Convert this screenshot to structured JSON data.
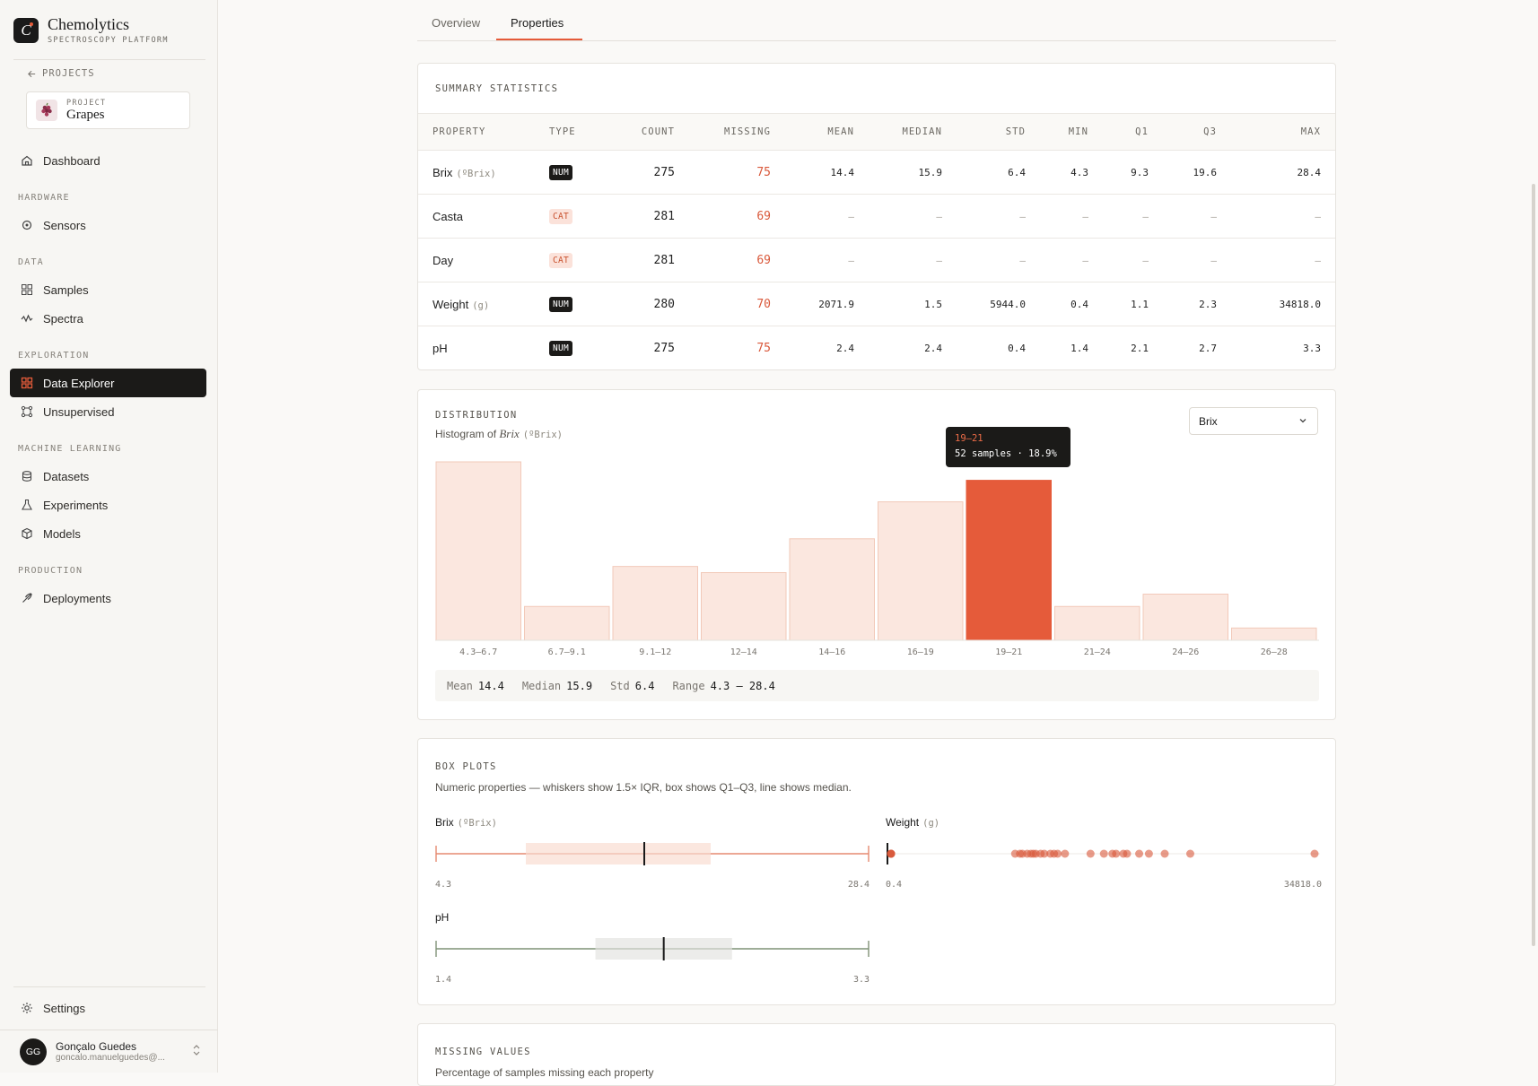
{
  "brand": {
    "name": "Chemolytics",
    "subtitle": "SPECTROSCOPY PLATFORM",
    "logo_letter": "C"
  },
  "sidebar": {
    "back_label": "PROJECTS",
    "project": {
      "kicker": "PROJECT",
      "name": "Grapes"
    },
    "dashboard": "Dashboard",
    "sections": {
      "hardware": "HARDWARE",
      "data": "DATA",
      "exploration": "EXPLORATION",
      "ml": "MACHINE LEARNING",
      "production": "PRODUCTION"
    },
    "items": {
      "sensors": "Sensors",
      "samples": "Samples",
      "spectra": "Spectra",
      "data_explorer": "Data Explorer",
      "unsupervised": "Unsupervised",
      "datasets": "Datasets",
      "experiments": "Experiments",
      "models": "Models",
      "deployments": "Deployments",
      "settings": "Settings"
    },
    "user": {
      "initials": "GG",
      "name": "Gonçalo Guedes",
      "email": "goncalo.manuelguedes@..."
    }
  },
  "tabs": {
    "overview": "Overview",
    "properties": "Properties",
    "active": "Properties"
  },
  "summary": {
    "title": "SUMMARY STATISTICS",
    "headers": [
      "PROPERTY",
      "TYPE",
      "COUNT",
      "MISSING",
      "MEAN",
      "MEDIAN",
      "STD",
      "MIN",
      "Q1",
      "Q3",
      "MAX"
    ],
    "rows": [
      {
        "name": "Brix",
        "unit": "(ºBrix)",
        "type": "NUM",
        "count": "275",
        "missing": "75",
        "mean": "14.4",
        "median": "15.9",
        "std": "6.4",
        "min": "4.3",
        "q1": "9.3",
        "q3": "19.6",
        "max": "28.4"
      },
      {
        "name": "Casta",
        "unit": "",
        "type": "CAT",
        "count": "281",
        "missing": "69",
        "mean": "–",
        "median": "–",
        "std": "–",
        "min": "–",
        "q1": "–",
        "q3": "–",
        "max": "–"
      },
      {
        "name": "Day",
        "unit": "",
        "type": "CAT",
        "count": "281",
        "missing": "69",
        "mean": "–",
        "median": "–",
        "std": "–",
        "min": "–",
        "q1": "–",
        "q3": "–",
        "max": "–"
      },
      {
        "name": "Weight",
        "unit": "(g)",
        "type": "NUM",
        "count": "280",
        "missing": "70",
        "mean": "2071.9",
        "median": "1.5",
        "std": "5944.0",
        "min": "0.4",
        "q1": "1.1",
        "q3": "2.3",
        "max": "34818.0"
      },
      {
        "name": "pH",
        "unit": "",
        "type": "NUM",
        "count": "275",
        "missing": "75",
        "mean": "2.4",
        "median": "2.4",
        "std": "0.4",
        "min": "1.4",
        "q1": "2.1",
        "q3": "2.7",
        "max": "3.3"
      }
    ]
  },
  "distribution": {
    "title": "DISTRIBUTION",
    "subtitle_prefix": "Histogram of ",
    "subtitle_var": "Brix",
    "subtitle_unit": "(ºBrix)",
    "select_value": "Brix",
    "tooltip": {
      "range": "19–21",
      "text": "52 samples · 18.9%"
    },
    "stats": {
      "mean_label": "Mean",
      "mean": "14.4",
      "median_label": "Median",
      "median": "15.9",
      "std_label": "Std",
      "std": "6.4",
      "range_label": "Range",
      "range": "4.3 – 28.4"
    },
    "colors": {
      "bar": "#fbe7df",
      "bar_border": "#f2c9b9",
      "highlight": "#e55b3a"
    }
  },
  "chart_data": {
    "type": "bar",
    "categories": [
      "4.3–6.7",
      "6.7–9.1",
      "9.1–12",
      "12–14",
      "14–16",
      "16–19",
      "19–21",
      "21–24",
      "24–26",
      "26–28"
    ],
    "values": [
      58,
      11,
      24,
      22,
      33,
      45,
      52,
      11,
      15,
      4
    ],
    "highlighted": "19–21",
    "ylim": [
      0,
      58
    ]
  },
  "boxplots": {
    "title": "BOX PLOTS",
    "subtitle": "Numeric properties — whiskers show 1.5× IQR, box shows Q1–Q3, line shows median.",
    "brix": {
      "name": "Brix",
      "unit": "(ºBrix)",
      "min": 4.3,
      "q1": 9.3,
      "median": 15.9,
      "q3": 19.6,
      "max": 28.4,
      "min_label": "4.3",
      "max_label": "28.4"
    },
    "weight": {
      "name": "Weight",
      "unit": "(g)",
      "min_label": "0.4",
      "max_label": "34818.0",
      "outliers": [
        0.4,
        1.5,
        2.3,
        3.2,
        3.9,
        10200,
        10600,
        10800,
        11200,
        11500,
        11700,
        11900,
        12300,
        12600,
        13100,
        13400,
        13700,
        14300,
        16400,
        17500,
        18200,
        18500,
        19100,
        19400,
        20400,
        21200,
        22500,
        24600,
        34818
      ]
    },
    "ph": {
      "name": "pH",
      "min": 1.4,
      "q1": 2.1,
      "median": 2.4,
      "q3": 2.7,
      "max": 3.3,
      "min_label": "1.4",
      "max_label": "3.3"
    }
  },
  "missing": {
    "title": "MISSING VALUES",
    "subtitle": "Percentage of samples missing each property"
  }
}
